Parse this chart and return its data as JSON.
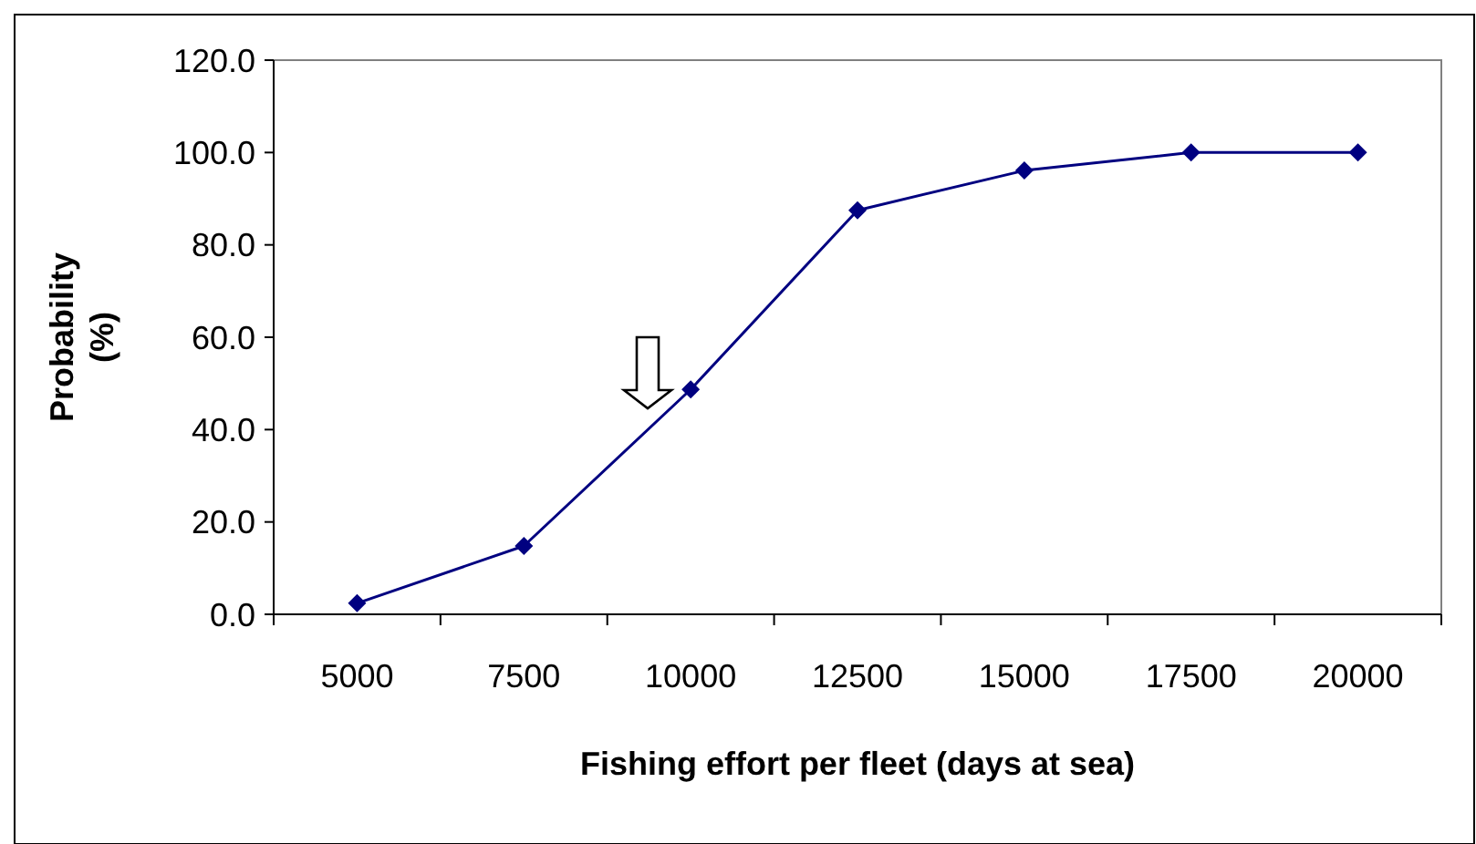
{
  "chart_data": {
    "type": "line",
    "xlabel": "Fishing effort per fleet (days at sea)",
    "ylabel": "Probability\n(%)",
    "categories": [
      "5000",
      "7500",
      "10000",
      "12500",
      "15000",
      "17500",
      "20000"
    ],
    "series": [
      {
        "color": "#000080",
        "values": [
          2.4,
          14.8,
          48.7,
          87.5,
          96.1,
          100,
          100
        ]
      }
    ],
    "ylim": [
      0,
      120
    ],
    "yticks": [
      {
        "value": 0,
        "label": "0.0"
      },
      {
        "value": 20,
        "label": "20.0"
      },
      {
        "value": 40,
        "label": "40.0"
      },
      {
        "value": 60,
        "label": "60.0"
      },
      {
        "value": 80,
        "label": "80.0"
      },
      {
        "value": 100,
        "label": "100.0"
      },
      {
        "value": 120,
        "label": "120.0"
      }
    ],
    "grid": false,
    "marker": "diamond",
    "line_style": "solid"
  }
}
